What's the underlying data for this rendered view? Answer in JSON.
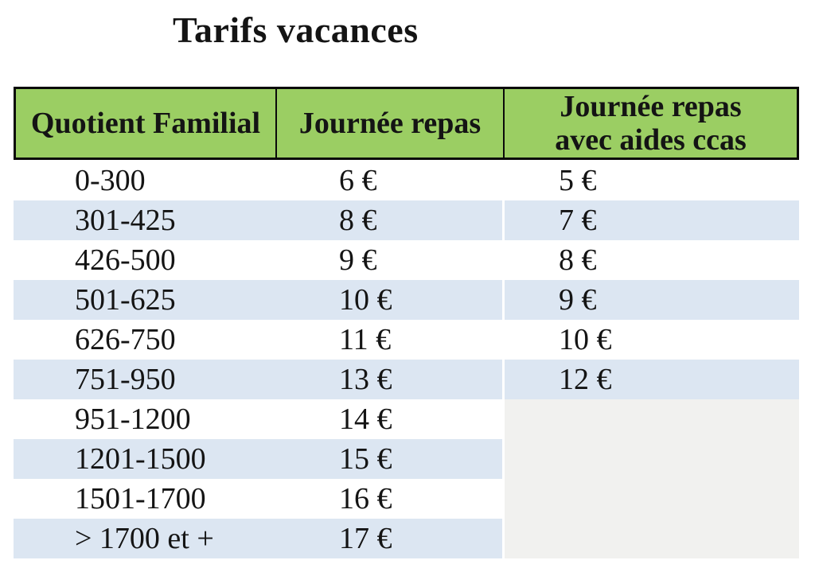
{
  "title": "Tarifs vacances",
  "colors": {
    "header_green": "#9BCE63",
    "row_band_blue": "#DCE6F2",
    "empty_cells_gray": "#F1F1EF",
    "border_black": "#0A0A0A"
  },
  "table": {
    "columns": [
      {
        "label": "Quotient Familial"
      },
      {
        "label": "Journée repas"
      },
      {
        "label": "Journée repas avec aides ccas",
        "label_line1": "Journée repas",
        "label_line2": "avec aides ccas"
      }
    ],
    "rows": [
      {
        "quotient": "0-300",
        "journee_repas": "6 €",
        "journee_repas_aides": "5 €"
      },
      {
        "quotient": "301-425",
        "journee_repas": "8 €",
        "journee_repas_aides": "7 €"
      },
      {
        "quotient": "426-500",
        "journee_repas": "9 €",
        "journee_repas_aides": "8 €"
      },
      {
        "quotient": "501-625",
        "journee_repas": "10 €",
        "journee_repas_aides": "9 €"
      },
      {
        "quotient": "626-750",
        "journee_repas": "11 €",
        "journee_repas_aides": "10 €"
      },
      {
        "quotient": "751-950",
        "journee_repas": "13 €",
        "journee_repas_aides": "12 €"
      },
      {
        "quotient": "951-1200",
        "journee_repas": "14 €",
        "journee_repas_aides": ""
      },
      {
        "quotient": "1201-1500",
        "journee_repas": "15 €",
        "journee_repas_aides": ""
      },
      {
        "quotient": "1501-1700",
        "journee_repas": "16 €",
        "journee_repas_aides": ""
      },
      {
        "quotient": "> 1700 et +",
        "journee_repas": "17 €",
        "journee_repas_aides": ""
      }
    ]
  }
}
